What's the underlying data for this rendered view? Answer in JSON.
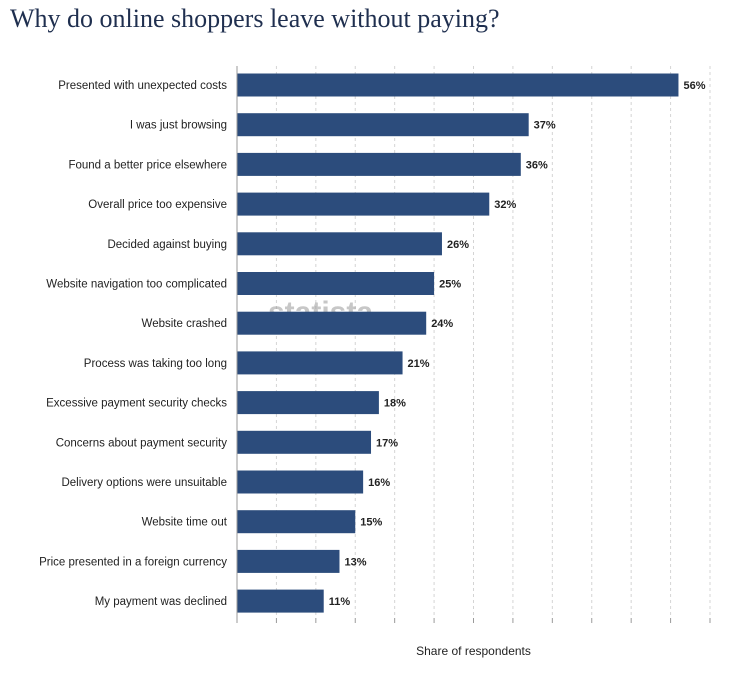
{
  "page": {
    "title": "Why do online shoppers leave without paying?",
    "watermark": "statista"
  },
  "colors": {
    "bar": "#2c4c7c",
    "title": "#1f2f4f",
    "grid": "#d4d4d4"
  },
  "chart_data": {
    "type": "bar",
    "orientation": "horizontal",
    "title": "Why do online shoppers leave without paying?",
    "xlabel": "Share of respondents",
    "ylabel": "",
    "xlim": [
      0,
      60
    ],
    "grid": true,
    "legend": "none",
    "value_suffix": "%",
    "categories": [
      "Presented with unexpected costs",
      "I was just browsing",
      "Found a better price elsewhere",
      "Overall price too expensive",
      "Decided against buying",
      "Website navigation too complicated",
      "Website crashed",
      "Process was taking too long",
      "Excessive payment security checks",
      "Concerns about payment security",
      "Delivery options were unsuitable",
      "Website time out",
      "Price presented in a foreign currency",
      "My payment was declined"
    ],
    "values": [
      56,
      37,
      36,
      32,
      26,
      25,
      24,
      21,
      18,
      17,
      16,
      15,
      13,
      11
    ]
  }
}
